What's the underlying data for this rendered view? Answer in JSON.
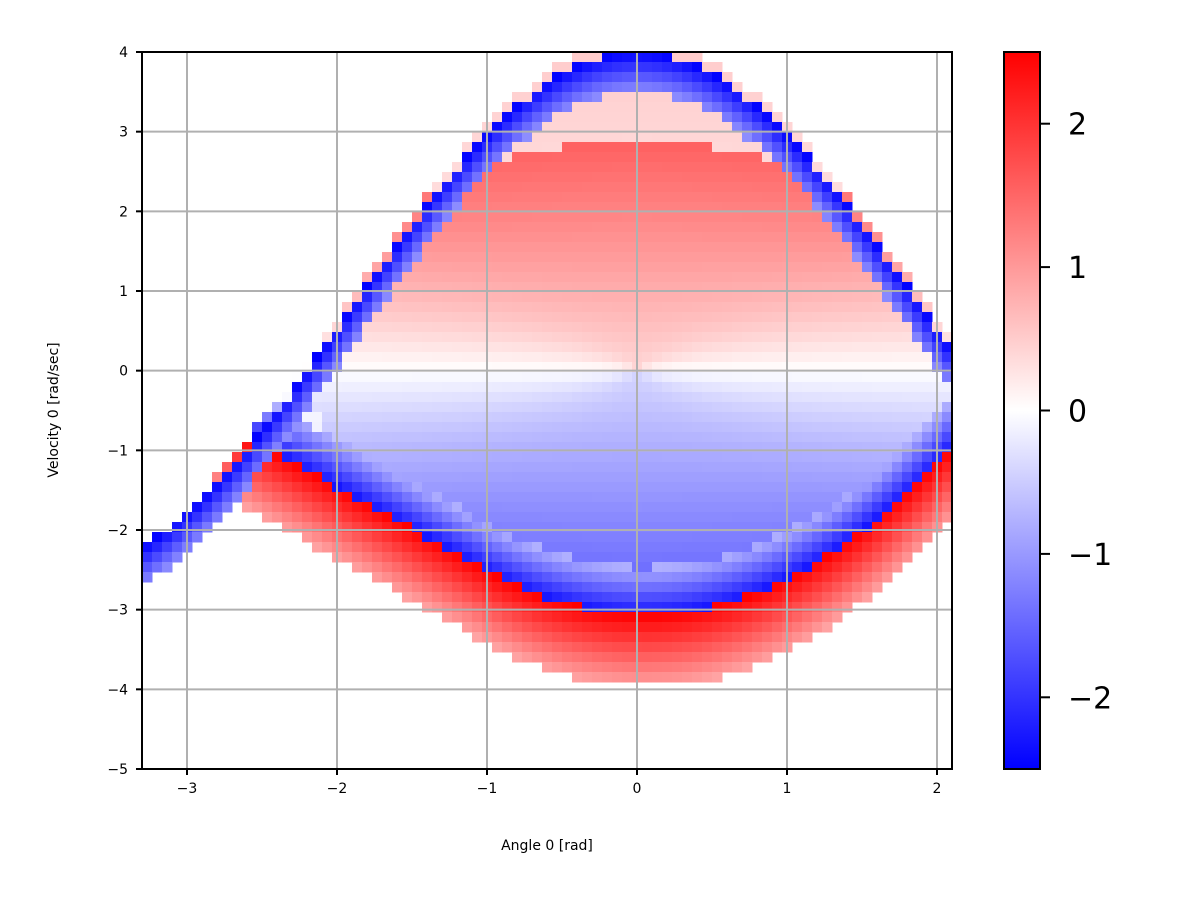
{
  "chart_data": {
    "type": "heatmap",
    "title": "",
    "xlabel": "Angle 0 [rad]",
    "ylabel": "Velocity 0 [rad/sec]",
    "xlim": [
      -3.3,
      2.1
    ],
    "ylim": [
      -5,
      4
    ],
    "x_ticks": [
      -3,
      -2,
      -1,
      0,
      1,
      2
    ],
    "y_ticks": [
      -5,
      -4,
      -3,
      -2,
      -1,
      0,
      1,
      2,
      3,
      4
    ],
    "grid": true,
    "colormap": "bwr",
    "colorbar": {
      "vmin": -2.5,
      "vmax": 2.5,
      "ticks": [
        -2,
        -1,
        0,
        1,
        2
      ],
      "placement": "right"
    },
    "colors": {
      "low": "#0000ff",
      "mid": "#ffffff",
      "high": "#ff0000",
      "grid": "#b0b0b0"
    },
    "field_description_values": {
      "outer_upper_band_value": -2.5,
      "outer_lower_band_value": 2.5,
      "inner_lower_band_value": -2.3,
      "center_value": 0
    }
  }
}
